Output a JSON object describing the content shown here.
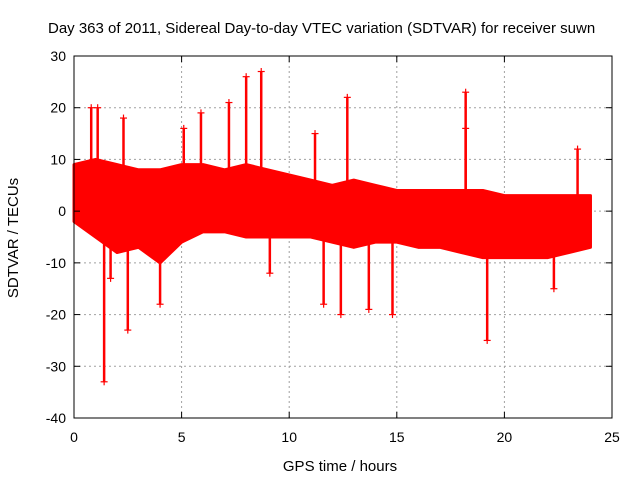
{
  "chart_data": {
    "type": "scatter",
    "title": "Day 363 of 2011, Sidereal Day-to-day VTEC variation (SDTVAR) for receiver suwn",
    "xlabel": "GPS time / hours",
    "ylabel": "SDTVAR / TECUs",
    "xlim": [
      0,
      25
    ],
    "ylim": [
      -40,
      30
    ],
    "xticks": [
      0,
      5,
      10,
      15,
      20,
      25
    ],
    "yticks": [
      -40,
      -30,
      -20,
      -10,
      0,
      10,
      20,
      30
    ],
    "grid": true,
    "marker": "+",
    "color": "#ff0000",
    "series": [
      {
        "name": "SDTVAR",
        "band": {
          "x": [
            0,
            1,
            2,
            3,
            4,
            5,
            6,
            7,
            8,
            9,
            10,
            11,
            12,
            13,
            14,
            15,
            16,
            17,
            18,
            19,
            20,
            21,
            22,
            23,
            24
          ],
          "upper": [
            9,
            10,
            9,
            8,
            8,
            9,
            9,
            8,
            9,
            8,
            7,
            6,
            5,
            6,
            5,
            4,
            4,
            4,
            4,
            4,
            3,
            3,
            3,
            3,
            3
          ],
          "lower": [
            -2,
            -5,
            -8,
            -7,
            -10,
            -6,
            -4,
            -4,
            -5,
            -5,
            -5,
            -5,
            -6,
            -7,
            -6,
            -6,
            -7,
            -7,
            -8,
            -9,
            -9,
            -9,
            -9,
            -8,
            -7
          ]
        },
        "spikes": [
          {
            "x": 0.8,
            "y": 20
          },
          {
            "x": 1.1,
            "y": 20
          },
          {
            "x": 1.4,
            "y": -33
          },
          {
            "x": 1.7,
            "y": -13
          },
          {
            "x": 2.3,
            "y": 18
          },
          {
            "x": 2.5,
            "y": -23
          },
          {
            "x": 4.0,
            "y": -18
          },
          {
            "x": 5.1,
            "y": 16
          },
          {
            "x": 5.9,
            "y": 19
          },
          {
            "x": 7.2,
            "y": 21
          },
          {
            "x": 8.0,
            "y": 26
          },
          {
            "x": 8.7,
            "y": 27
          },
          {
            "x": 9.1,
            "y": -12
          },
          {
            "x": 11.2,
            "y": 15
          },
          {
            "x": 11.6,
            "y": -18
          },
          {
            "x": 12.4,
            "y": -20
          },
          {
            "x": 12.7,
            "y": 22
          },
          {
            "x": 13.7,
            "y": -19
          },
          {
            "x": 14.8,
            "y": -20
          },
          {
            "x": 18.2,
            "y": 23
          },
          {
            "x": 18.2,
            "y": 16
          },
          {
            "x": 19.2,
            "y": -25
          },
          {
            "x": 22.3,
            "y": -15
          },
          {
            "x": 23.4,
            "y": 12
          }
        ]
      }
    ]
  }
}
